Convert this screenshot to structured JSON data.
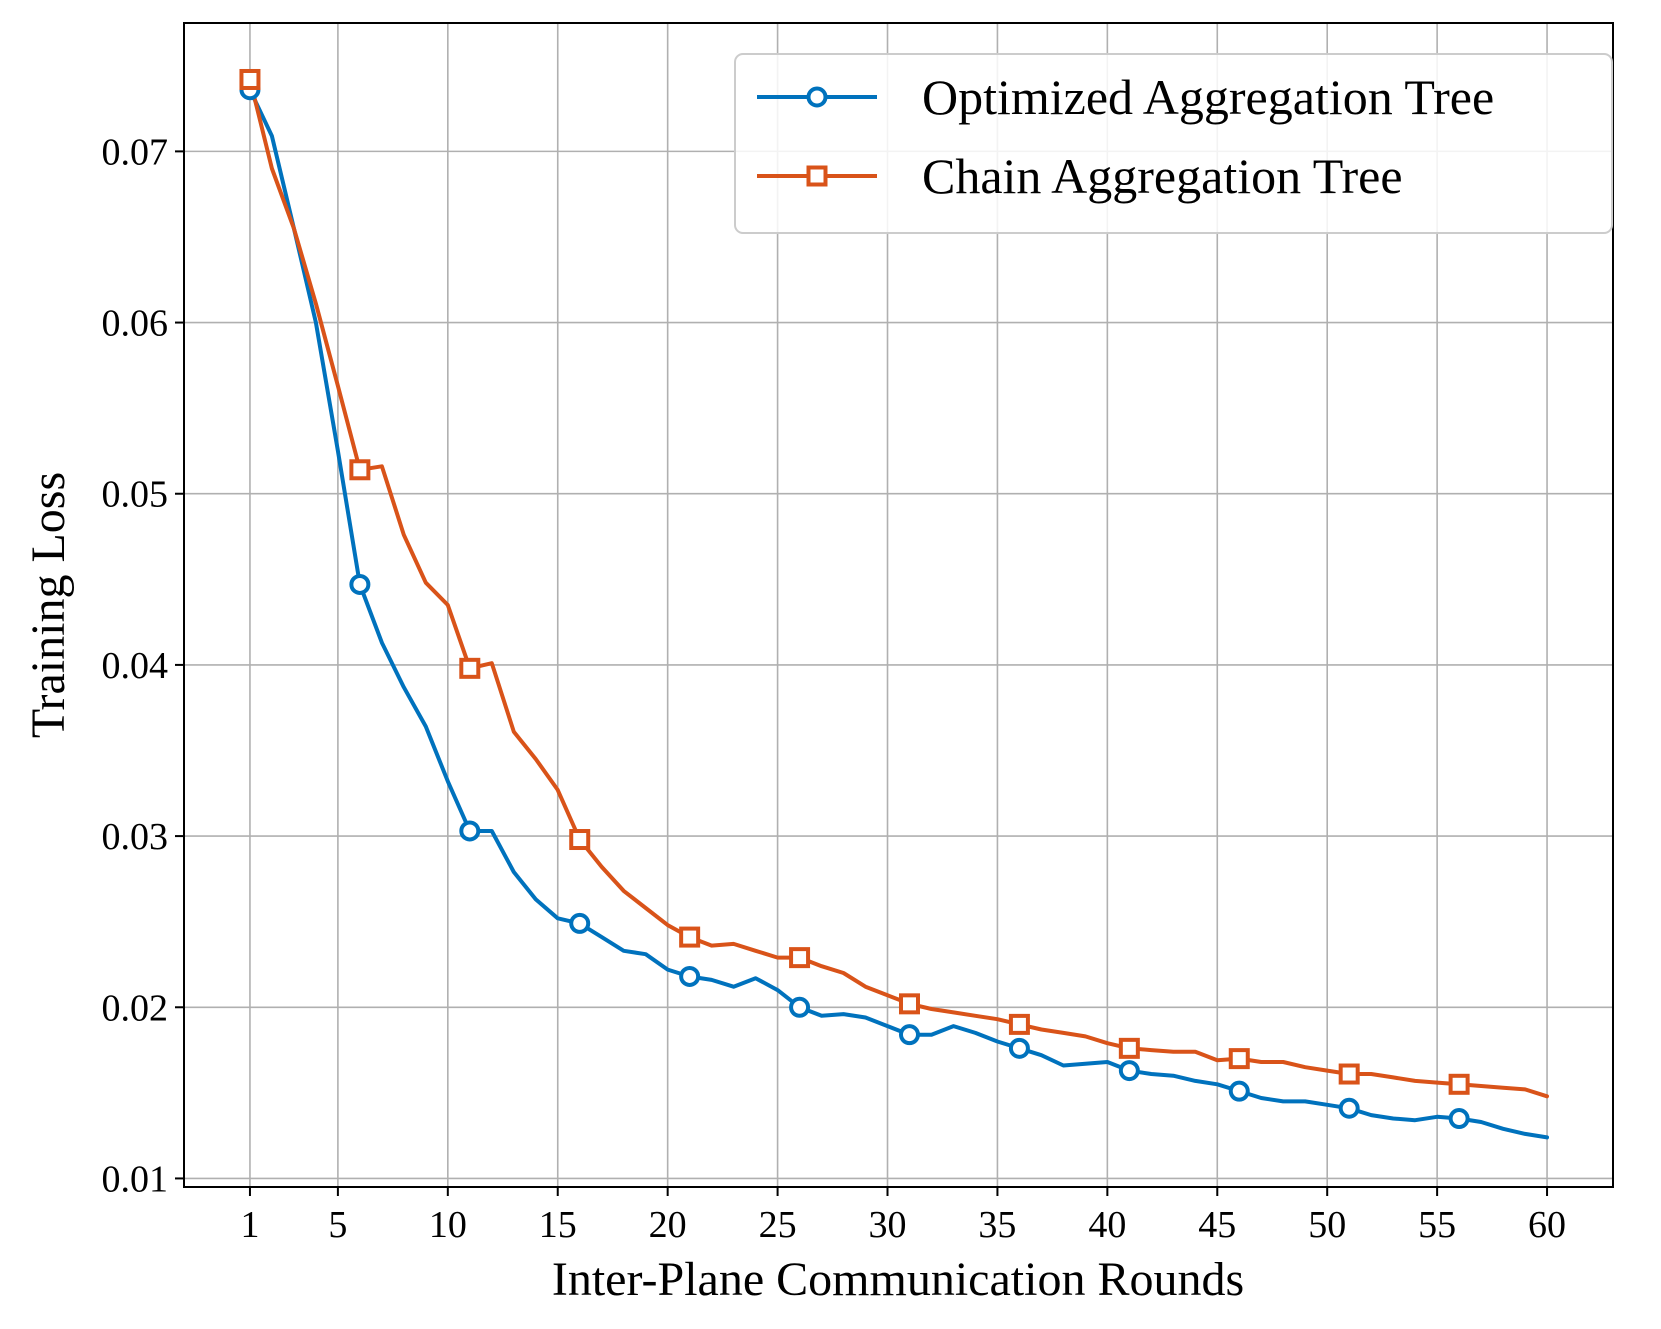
{
  "chart_data": {
    "type": "line",
    "xlabel": "Inter-Plane Communication Rounds",
    "ylabel": "Training Loss",
    "xlim": [
      -2,
      63
    ],
    "ylim": [
      0.0095,
      0.0775
    ],
    "xticks": [
      1,
      5,
      10,
      15,
      20,
      25,
      30,
      35,
      40,
      45,
      50,
      55,
      60
    ],
    "yticks": [
      0.01,
      0.02,
      0.03,
      0.04,
      0.05,
      0.06,
      0.07
    ],
    "ytick_labels": [
      "0.01",
      "0.02",
      "0.03",
      "0.04",
      "0.05",
      "0.06",
      "0.07"
    ],
    "grid": true,
    "legend_position": "top-right",
    "marker_every": 5,
    "x": [
      1,
      2,
      3,
      4,
      5,
      6,
      7,
      8,
      9,
      10,
      11,
      12,
      13,
      14,
      15,
      16,
      17,
      18,
      19,
      20,
      21,
      22,
      23,
      24,
      25,
      26,
      27,
      28,
      29,
      30,
      31,
      32,
      33,
      34,
      35,
      36,
      37,
      38,
      39,
      40,
      41,
      42,
      43,
      44,
      45,
      46,
      47,
      48,
      49,
      50,
      51,
      52,
      53,
      54,
      55,
      56,
      57,
      58,
      59,
      60
    ],
    "series": [
      {
        "name": "Optimized Aggregation Tree",
        "color": "#0072bd",
        "marker": "circle",
        "values": [
          0.0736,
          0.0709,
          0.0655,
          0.06,
          0.0525,
          0.0447,
          0.0413,
          0.0387,
          0.0364,
          0.0332,
          0.0303,
          0.0303,
          0.0279,
          0.0263,
          0.0252,
          0.0249,
          0.0241,
          0.0233,
          0.0231,
          0.0222,
          0.0218,
          0.0216,
          0.0212,
          0.0217,
          0.021,
          0.02,
          0.0195,
          0.0196,
          0.0194,
          0.0189,
          0.0184,
          0.0184,
          0.0189,
          0.0185,
          0.018,
          0.0176,
          0.0172,
          0.0166,
          0.0167,
          0.0168,
          0.0163,
          0.0161,
          0.016,
          0.0157,
          0.0155,
          0.0151,
          0.0147,
          0.0145,
          0.0145,
          0.0143,
          0.0141,
          0.0137,
          0.0135,
          0.0134,
          0.0136,
          0.0135,
          0.0133,
          0.0129,
          0.0126,
          0.0124
        ]
      },
      {
        "name": "Chain Aggregation Tree",
        "color": "#d95319",
        "marker": "square",
        "values": [
          0.0742,
          0.069,
          0.0655,
          0.0611,
          0.0563,
          0.0514,
          0.0516,
          0.0476,
          0.0448,
          0.0435,
          0.0398,
          0.0401,
          0.0361,
          0.0345,
          0.0327,
          0.0298,
          0.0282,
          0.0268,
          0.0258,
          0.0248,
          0.0241,
          0.0236,
          0.0237,
          0.0233,
          0.0229,
          0.0229,
          0.0224,
          0.022,
          0.0212,
          0.0207,
          0.0202,
          0.0199,
          0.0197,
          0.0195,
          0.0193,
          0.019,
          0.0187,
          0.0185,
          0.0183,
          0.0179,
          0.0176,
          0.0175,
          0.0174,
          0.0174,
          0.0169,
          0.017,
          0.0168,
          0.0168,
          0.0165,
          0.0163,
          0.0161,
          0.0161,
          0.0159,
          0.0157,
          0.0156,
          0.0155,
          0.0154,
          0.0153,
          0.0152,
          0.0148
        ]
      }
    ]
  }
}
